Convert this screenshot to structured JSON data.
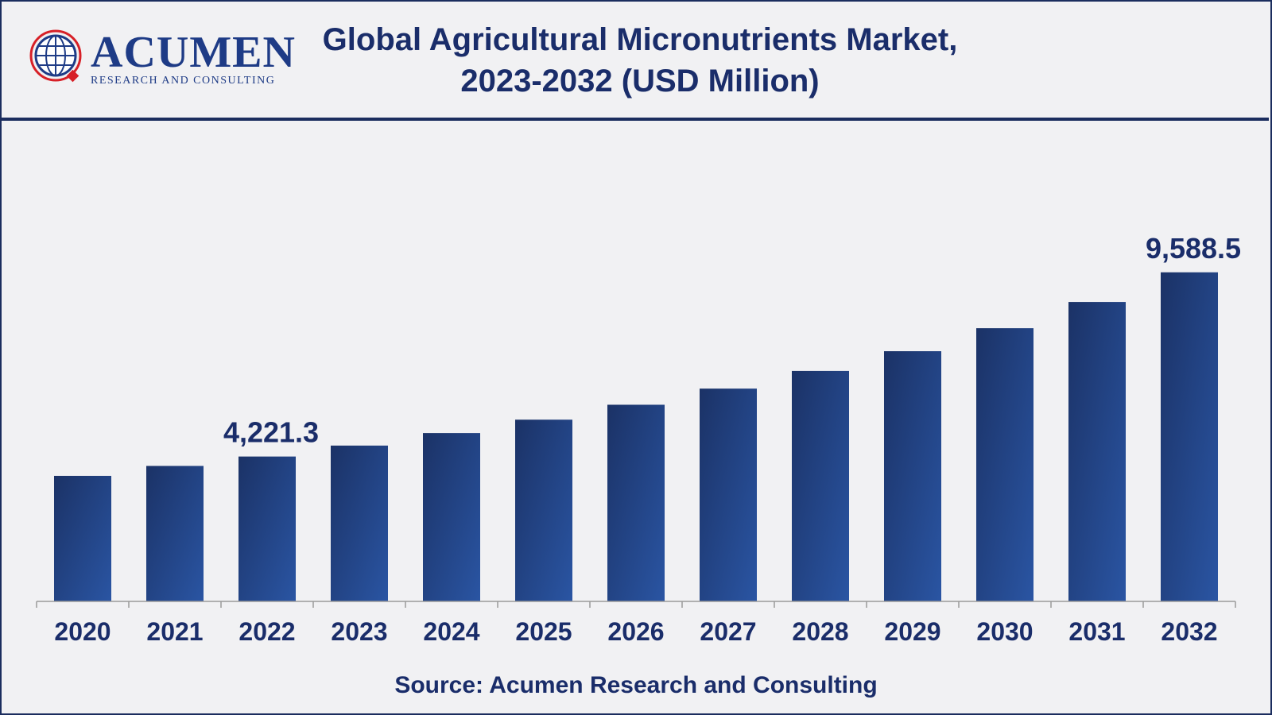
{
  "header": {
    "logo_word": "ACUMEN",
    "logo_subtitle": "RESEARCH AND CONSULTING",
    "title_line1": "Global Agricultural Micronutrients Market,",
    "title_line2": "2023-2032 (USD Million)"
  },
  "source": "Source: Acumen Research and Consulting",
  "colors": {
    "bar_dark": "#1b3266",
    "bar_light": "#2a55a3",
    "text": "#1a2d6a",
    "frame": "#1b2d5e",
    "logo_red": "#d72027"
  },
  "chart_data": {
    "type": "bar",
    "title": "Global Agricultural Micronutrients Market, 2023-2032 (USD Million)",
    "xlabel": "",
    "ylabel": "",
    "categories": [
      "2020",
      "2021",
      "2022",
      "2023",
      "2024",
      "2025",
      "2026",
      "2027",
      "2028",
      "2029",
      "2030",
      "2031",
      "2032"
    ],
    "values": [
      3658,
      3947,
      4221.3,
      4540,
      4905,
      5295,
      5730,
      6200,
      6715,
      7290,
      7960,
      8725,
      9588.5
    ],
    "data_labels": [
      {
        "category": "2022",
        "text": "4,221.3"
      },
      {
        "category": "2032",
        "text": "9,588.5"
      }
    ],
    "ylim": [
      0,
      10000
    ],
    "grid": false,
    "legend": "none"
  }
}
